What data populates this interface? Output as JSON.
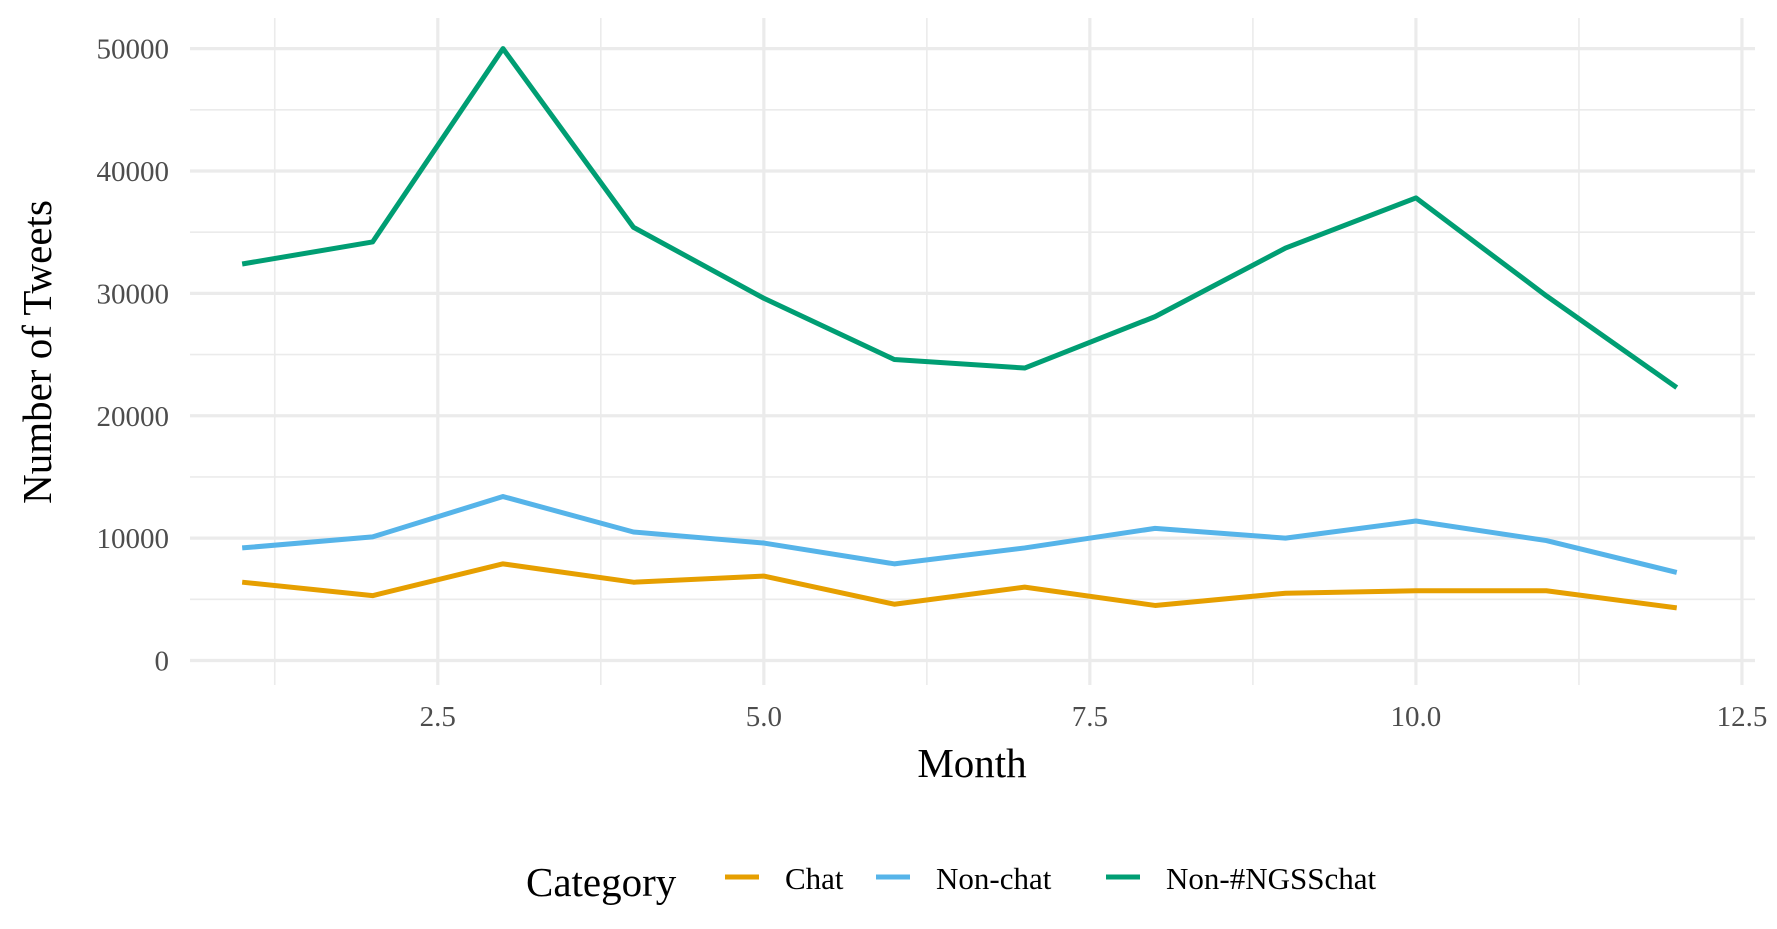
{
  "chart_data": {
    "type": "line",
    "xlabel": "Month",
    "ylabel": "Number of Tweets",
    "xlim": [
      0.6,
      12.6
    ],
    "ylim": [
      -2000,
      52500
    ],
    "x_ticks": [
      2.5,
      5.0,
      7.5,
      10.0,
      12.5
    ],
    "x_tick_labels": [
      "2.5",
      "5.0",
      "7.5",
      "10.0",
      "12.5"
    ],
    "y_ticks": [
      0,
      10000,
      20000,
      30000,
      40000,
      50000
    ],
    "y_tick_labels": [
      "0",
      "10000",
      "20000",
      "30000",
      "40000",
      "50000"
    ],
    "grid": true,
    "legend": {
      "title": "Category",
      "position": "bottom"
    },
    "x": [
      1,
      2,
      3,
      4,
      5,
      6,
      7,
      8,
      9,
      10,
      11,
      12
    ],
    "series": [
      {
        "name": "Chat",
        "color": "#E69F00",
        "values": [
          6400,
          5300,
          7900,
          6400,
          6900,
          4600,
          6000,
          4500,
          5500,
          5700,
          5700,
          4300
        ]
      },
      {
        "name": "Non-chat",
        "color": "#56B4E9",
        "values": [
          9200,
          10100,
          13400,
          10500,
          9600,
          7900,
          9200,
          10800,
          10000,
          11400,
          9800,
          7200
        ]
      },
      {
        "name": "Non-#NGSSchat",
        "color": "#009E73",
        "values": [
          32400,
          34200,
          50000,
          35400,
          29600,
          24600,
          23900,
          28100,
          33700,
          37800,
          29800,
          22300
        ]
      }
    ]
  }
}
